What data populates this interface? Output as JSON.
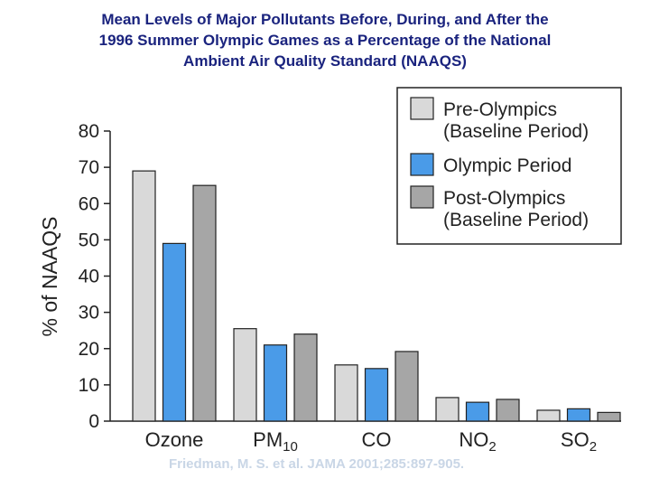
{
  "title_lines": [
    "Mean Levels of Major Pollutants Before, During, and After the",
    "1996 Summer Olympic Games as a Percentage of the National",
    "Ambient Air Quality Standard (NAAQS)"
  ],
  "citation": "Friedman, M. S. et al. JAMA 2001;285:897-905.",
  "chart_data": {
    "type": "bar",
    "title": "Mean Levels of Major Pollutants Before, During, and After the 1996 Summer Olympic Games as a Percentage of the National Ambient Air Quality Standard (NAAQS)",
    "xlabel": "",
    "ylabel": "% of NAAQS",
    "ylim": [
      0,
      80
    ],
    "yticks": [
      0,
      10,
      20,
      30,
      40,
      50,
      60,
      70,
      80
    ],
    "categories": [
      {
        "base": "Ozone",
        "sub": ""
      },
      {
        "base": "PM",
        "sub": "10"
      },
      {
        "base": "CO",
        "sub": ""
      },
      {
        "base": "NO",
        "sub": "2"
      },
      {
        "base": "SO",
        "sub": "2"
      }
    ],
    "series": [
      {
        "name": "Pre-Olympics (Baseline Period)",
        "legend_lines": [
          "Pre-Olympics",
          "(Baseline Period)"
        ],
        "color": "#d9d9d9",
        "values": [
          69,
          25.5,
          15.5,
          6.5,
          3
        ]
      },
      {
        "name": "Olympic Period",
        "legend_lines": [
          "Olympic Period"
        ],
        "color": "#4a9be8",
        "values": [
          49,
          21,
          14.5,
          5.2,
          3.4
        ]
      },
      {
        "name": "Post-Olympics (Baseline Period)",
        "legend_lines": [
          "Post-Olympics",
          "(Baseline Period)"
        ],
        "color": "#a6a6a6",
        "values": [
          65,
          24,
          19.2,
          6,
          2.4
        ]
      }
    ],
    "grid": false,
    "legend_position": "top-right"
  }
}
